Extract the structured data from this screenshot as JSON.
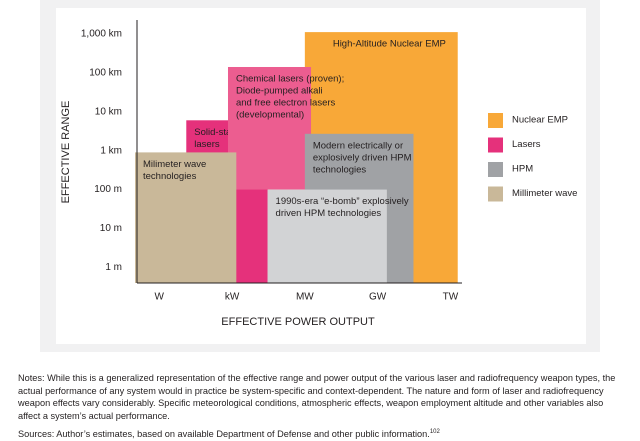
{
  "chart_data": {
    "type": "range-box",
    "ylabel": "EFFECTIVE RANGE",
    "xlabel": "EFFECTIVE POWER OUTPUT",
    "xscale": "log",
    "yscale": "log",
    "xlim": [
      0.1,
      3000000000000
    ],
    "ylim": [
      0.4,
      2000000
    ],
    "xticks": [
      {
        "value": 1,
        "label": "W"
      },
      {
        "value": 1000,
        "label": "kW"
      },
      {
        "value": 1000000,
        "label": "MW"
      },
      {
        "value": 1000000000,
        "label": "GW"
      },
      {
        "value": 1000000000000,
        "label": "TW"
      }
    ],
    "yticks": [
      {
        "value": 1,
        "label": "1 m"
      },
      {
        "value": 10,
        "label": "10 m"
      },
      {
        "value": 100,
        "label": "100 m"
      },
      {
        "value": 1000,
        "label": "1 km"
      },
      {
        "value": 10000,
        "label": "10 km"
      },
      {
        "value": 100000,
        "label": "100 km"
      },
      {
        "value": 1000000,
        "label": "1,000 km"
      }
    ],
    "legend": "right",
    "series": [
      {
        "name": "Nuclear EMP",
        "color": "#f8a838",
        "boxes": [
          {
            "label": [
              "High-Altitude Nuclear EMP"
            ],
            "x": [
              1000000,
              2000000000000
            ],
            "y": [
              0.4,
              1100000
            ]
          }
        ]
      },
      {
        "name": "Lasers",
        "color": "#e5317b",
        "boxes": [
          {
            "label": [
              "Solid-state and fiber",
              "lasers"
            ],
            "x": [
              13,
              30000
            ],
            "y": [
              0.4,
              6000
            ]
          },
          {
            "label": [
              "Chemical lasers (proven);",
              "Diode-pumped alkali",
              "and free electron lasers",
              "(developmental)"
            ],
            "color": "#ec5d90",
            "x": [
              680,
              1800000
            ],
            "y": [
              100,
              140000
            ]
          }
        ]
      },
      {
        "name": "HPM",
        "color": "#a0a2a5",
        "boxes": [
          {
            "label": [
              "Modern electrically or",
              "explosively driven HPM",
              "technologies"
            ],
            "x": [
              1000000,
              30000000000
            ],
            "y": [
              0.4,
              2700
            ]
          },
          {
            "label": [
              "1990s-era “e-bomb” explosively",
              "driven HPM technologies"
            ],
            "color": "#d2d3d5",
            "x": [
              29000,
              2400000000
            ],
            "y": [
              0.4,
              100
            ]
          }
        ]
      },
      {
        "name": "Millimeter wave",
        "color": "#c9b899",
        "boxes": [
          {
            "label": [
              "Milimeter wave",
              "technologies"
            ],
            "x": [
              0.1,
              1500
            ],
            "y": [
              0.4,
              900
            ]
          }
        ]
      }
    ]
  },
  "notes": "Notes: While this is a generalized representation of the effective range and power output of the various laser and radiofrequency weapon types, the actual performance of any system would in practice be system-specific and context-dependent. The nature and form of laser and radiofrequency weapon effects vary considerably. Specific meteorological conditions, atmospheric effects, weapon employment altitude and other variables also affect a system’s actual performance.",
  "sources": "Sources: Author’s estimates, based on available Department of Defense and other public information.",
  "sources_ref": "102"
}
